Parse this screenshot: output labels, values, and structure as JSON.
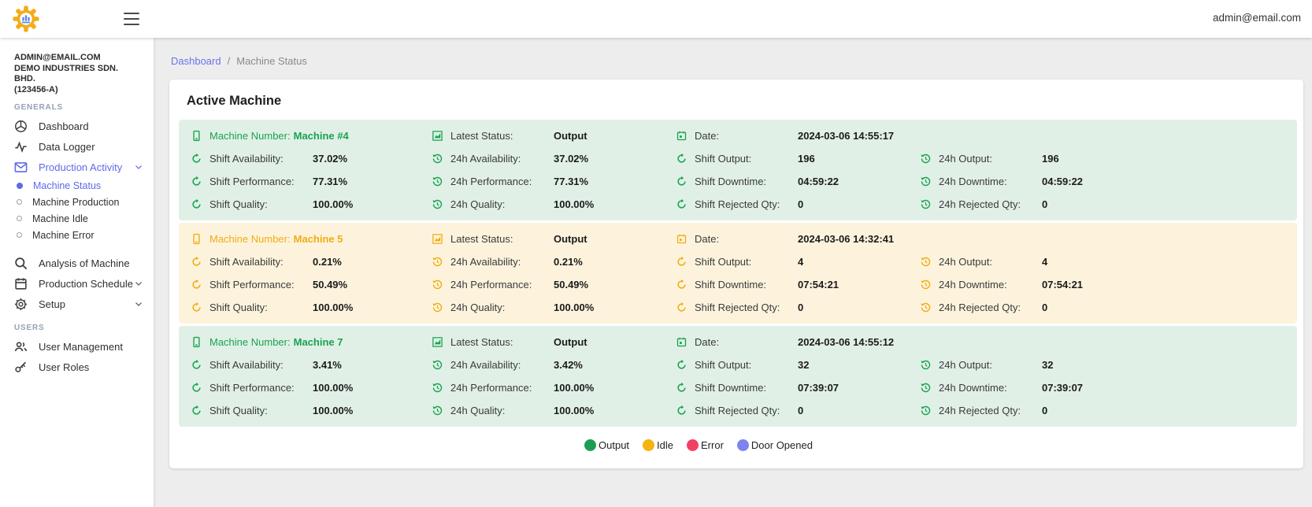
{
  "topbar": {
    "email": "admin@email.com"
  },
  "sidebar": {
    "account": {
      "email": "ADMIN@EMAIL.COM",
      "company": "DEMO INDUSTRIES SDN. BHD.",
      "registration": "(123456-A)"
    },
    "sections": [
      {
        "header": "GENERALS",
        "items": [
          {
            "label": "Dashboard",
            "icon": "dashboard-icon"
          },
          {
            "label": "Data Logger",
            "icon": "waveform-icon"
          },
          {
            "label": "Production Activity",
            "icon": "mail-icon",
            "active": true,
            "expanded": true,
            "children": [
              {
                "label": "Machine Status",
                "active": true
              },
              {
                "label": "Machine Production"
              },
              {
                "label": "Machine Idle"
              },
              {
                "label": "Machine Error"
              }
            ]
          },
          {
            "label": "Analysis of Machine",
            "icon": "search-icon"
          },
          {
            "label": "Production Schedule",
            "icon": "calendar-icon",
            "collapsible": true
          },
          {
            "label": "Setup",
            "icon": "gear-icon",
            "collapsible": true
          }
        ]
      },
      {
        "header": "USERS",
        "items": [
          {
            "label": "User Management",
            "icon": "users-icon"
          },
          {
            "label": "User Roles",
            "icon": "key-icon"
          }
        ]
      }
    ]
  },
  "breadcrumb": {
    "items": [
      "Dashboard",
      "Machine Status"
    ],
    "separator": "/"
  },
  "page": {
    "title": "Active Machine"
  },
  "labels": {
    "machine_number": "Machine Number:",
    "latest_status": "Latest Status:",
    "date": "Date:",
    "shift_availability": "Shift Availability:",
    "h24_availability": "24h Availability:",
    "shift_performance": "Shift Performance:",
    "h24_performance": "24h Performance:",
    "shift_quality": "Shift Quality:",
    "h24_quality": "24h Quality:",
    "shift_output": "Shift Output:",
    "h24_output": "24h Output:",
    "shift_downtime": "Shift Downtime:",
    "h24_downtime": "24h Downtime:",
    "shift_rejected": "Shift Rejected Qty:",
    "h24_rejected": "24h Rejected Qty:"
  },
  "machines": [
    {
      "name": "Machine #4",
      "theme": "green",
      "stats": {
        "latest_status": "Output",
        "date": "2024-03-06 14:55:17",
        "shift_availability": "37.02%",
        "h24_availability": "37.02%",
        "shift_performance": "77.31%",
        "h24_performance": "77.31%",
        "shift_quality": "100.00%",
        "h24_quality": "100.00%",
        "shift_output": "196",
        "h24_output": "196",
        "shift_downtime": "04:59:22",
        "h24_downtime": "04:59:22",
        "shift_rejected": "0",
        "h24_rejected": "0"
      }
    },
    {
      "name": "Machine 5",
      "theme": "yellow",
      "stats": {
        "latest_status": "Output",
        "date": "2024-03-06 14:32:41",
        "shift_availability": "0.21%",
        "h24_availability": "0.21%",
        "shift_performance": "50.49%",
        "h24_performance": "50.49%",
        "shift_quality": "100.00%",
        "h24_quality": "100.00%",
        "shift_output": "4",
        "h24_output": "4",
        "shift_downtime": "07:54:21",
        "h24_downtime": "07:54:21",
        "shift_rejected": "0",
        "h24_rejected": "0"
      }
    },
    {
      "name": "Machine 7",
      "theme": "green",
      "stats": {
        "latest_status": "Output",
        "date": "2024-03-06 14:55:12",
        "shift_availability": "3.41%",
        "h24_availability": "3.42%",
        "shift_performance": "100.00%",
        "h24_performance": "100.00%",
        "shift_quality": "100.00%",
        "h24_quality": "100.00%",
        "shift_output": "32",
        "h24_output": "32",
        "shift_downtime": "07:39:07",
        "h24_downtime": "07:39:07",
        "shift_rejected": "0",
        "h24_rejected": "0"
      }
    }
  ],
  "themes": {
    "green": {
      "accent": "#18A351",
      "bg": "#E1F0E6"
    },
    "yellow": {
      "accent": "#F0AD12",
      "bg": "#FDF3DD"
    }
  },
  "legend": {
    "items": [
      {
        "label": "Output",
        "color": "#1D9D50"
      },
      {
        "label": "Idle",
        "color": "#F5B40D"
      },
      {
        "label": "Error",
        "color": "#F33F63"
      },
      {
        "label": "Door Opened",
        "color": "#7E84EF"
      }
    ]
  },
  "colors": {
    "active": "#5F6AE8",
    "breadcrumb_link": "#6A73EA"
  }
}
